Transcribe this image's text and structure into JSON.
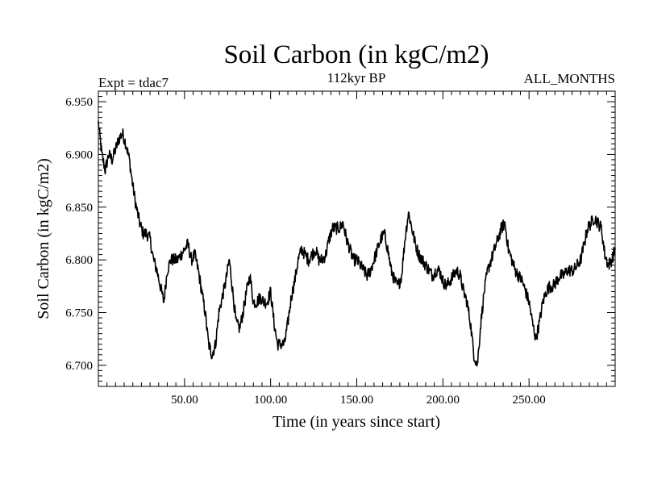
{
  "chart_data": {
    "type": "line",
    "title": "Soil Carbon (in kgC/m2)",
    "subtitle": "112kyr BP",
    "header_left": "Expt = tdac7",
    "header_right": "ALL_MONTHS",
    "xlabel": "Time (in years since start)",
    "ylabel": "Soil Carbon (in kgC/m2)",
    "xlim": [
      0,
      300
    ],
    "ylim": [
      6.68,
      6.96
    ],
    "x_ticks": [
      50,
      100,
      150,
      200,
      250
    ],
    "x_tick_labels": [
      "50.00",
      "100.00",
      "150.00",
      "200.00",
      "250.00"
    ],
    "y_ticks": [
      6.7,
      6.75,
      6.8,
      6.85,
      6.9,
      6.95
    ],
    "y_tick_labels": [
      "6.700",
      "6.750",
      "6.800",
      "6.850",
      "6.900",
      "6.950"
    ],
    "grid": false,
    "series": [
      {
        "name": "Soil Carbon",
        "color": "#000000",
        "noise_amplitude": 0.006,
        "x": [
          0,
          2,
          4,
          6,
          8,
          10,
          12,
          14,
          16,
          18,
          20,
          22,
          24,
          26,
          28,
          30,
          32,
          34,
          36,
          38,
          40,
          42,
          44,
          46,
          48,
          50,
          52,
          54,
          56,
          58,
          60,
          62,
          64,
          66,
          68,
          70,
          72,
          74,
          76,
          78,
          80,
          82,
          84,
          86,
          88,
          90,
          92,
          94,
          96,
          98,
          100,
          102,
          104,
          106,
          108,
          110,
          112,
          114,
          116,
          118,
          120,
          122,
          124,
          126,
          128,
          130,
          132,
          134,
          136,
          138,
          140,
          142,
          144,
          146,
          148,
          150,
          152,
          154,
          156,
          158,
          160,
          162,
          164,
          166,
          168,
          170,
          172,
          174,
          176,
          178,
          180,
          182,
          184,
          186,
          188,
          190,
          192,
          194,
          196,
          198,
          200,
          202,
          204,
          206,
          208,
          210,
          212,
          214,
          216,
          218,
          220,
          222,
          224,
          226,
          228,
          230,
          232,
          234,
          236,
          238,
          240,
          242,
          244,
          246,
          248,
          250,
          252,
          254,
          256,
          258,
          260,
          262,
          264,
          266,
          268,
          270,
          272,
          274,
          276,
          278,
          280,
          282,
          284,
          286,
          288,
          290,
          292,
          294,
          296,
          298,
          300
        ],
        "values": [
          6.93,
          6.9,
          6.885,
          6.9,
          6.895,
          6.905,
          6.915,
          6.92,
          6.91,
          6.895,
          6.87,
          6.85,
          6.835,
          6.825,
          6.825,
          6.82,
          6.8,
          6.79,
          6.775,
          6.76,
          6.79,
          6.8,
          6.8,
          6.8,
          6.805,
          6.81,
          6.815,
          6.8,
          6.805,
          6.79,
          6.77,
          6.75,
          6.72,
          6.71,
          6.72,
          6.75,
          6.765,
          6.78,
          6.8,
          6.77,
          6.74,
          6.735,
          6.75,
          6.77,
          6.785,
          6.76,
          6.76,
          6.765,
          6.76,
          6.76,
          6.77,
          6.74,
          6.72,
          6.72,
          6.72,
          6.74,
          6.765,
          6.78,
          6.8,
          6.81,
          6.805,
          6.8,
          6.805,
          6.81,
          6.8,
          6.8,
          6.805,
          6.82,
          6.83,
          6.83,
          6.83,
          6.835,
          6.82,
          6.81,
          6.8,
          6.8,
          6.795,
          6.79,
          6.785,
          6.79,
          6.8,
          6.81,
          6.82,
          6.825,
          6.81,
          6.79,
          6.78,
          6.775,
          6.785,
          6.82,
          6.845,
          6.83,
          6.815,
          6.805,
          6.8,
          6.795,
          6.79,
          6.785,
          6.79,
          6.79,
          6.78,
          6.775,
          6.78,
          6.785,
          6.79,
          6.785,
          6.77,
          6.76,
          6.74,
          6.71,
          6.7,
          6.74,
          6.77,
          6.79,
          6.8,
          6.81,
          6.82,
          6.83,
          6.835,
          6.81,
          6.8,
          6.79,
          6.785,
          6.78,
          6.77,
          6.76,
          6.74,
          6.725,
          6.74,
          6.76,
          6.77,
          6.775,
          6.775,
          6.78,
          6.785,
          6.785,
          6.79,
          6.79,
          6.79,
          6.795,
          6.8,
          6.815,
          6.83,
          6.835,
          6.84,
          6.835,
          6.83,
          6.805,
          6.795,
          6.8,
          6.81
        ]
      }
    ]
  }
}
